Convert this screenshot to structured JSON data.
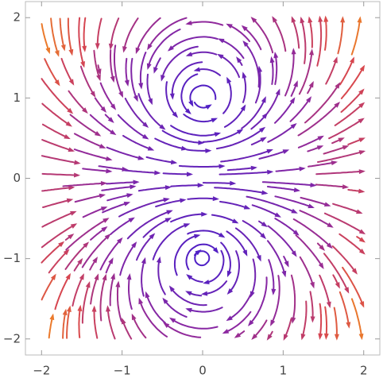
{
  "chart_data": {
    "type": "stream",
    "xlim": [
      -2.2,
      2.2
    ],
    "ylim": [
      -2.2,
      2.2
    ],
    "xticks": [
      {
        "value": -2,
        "label": "−2"
      },
      {
        "value": -1,
        "label": "−1"
      },
      0,
      1,
      2
    ],
    "yticks": [
      {
        "value": -2,
        "label": "−2"
      },
      {
        "value": -1,
        "label": "−1"
      },
      0,
      1,
      2
    ]
  }
}
